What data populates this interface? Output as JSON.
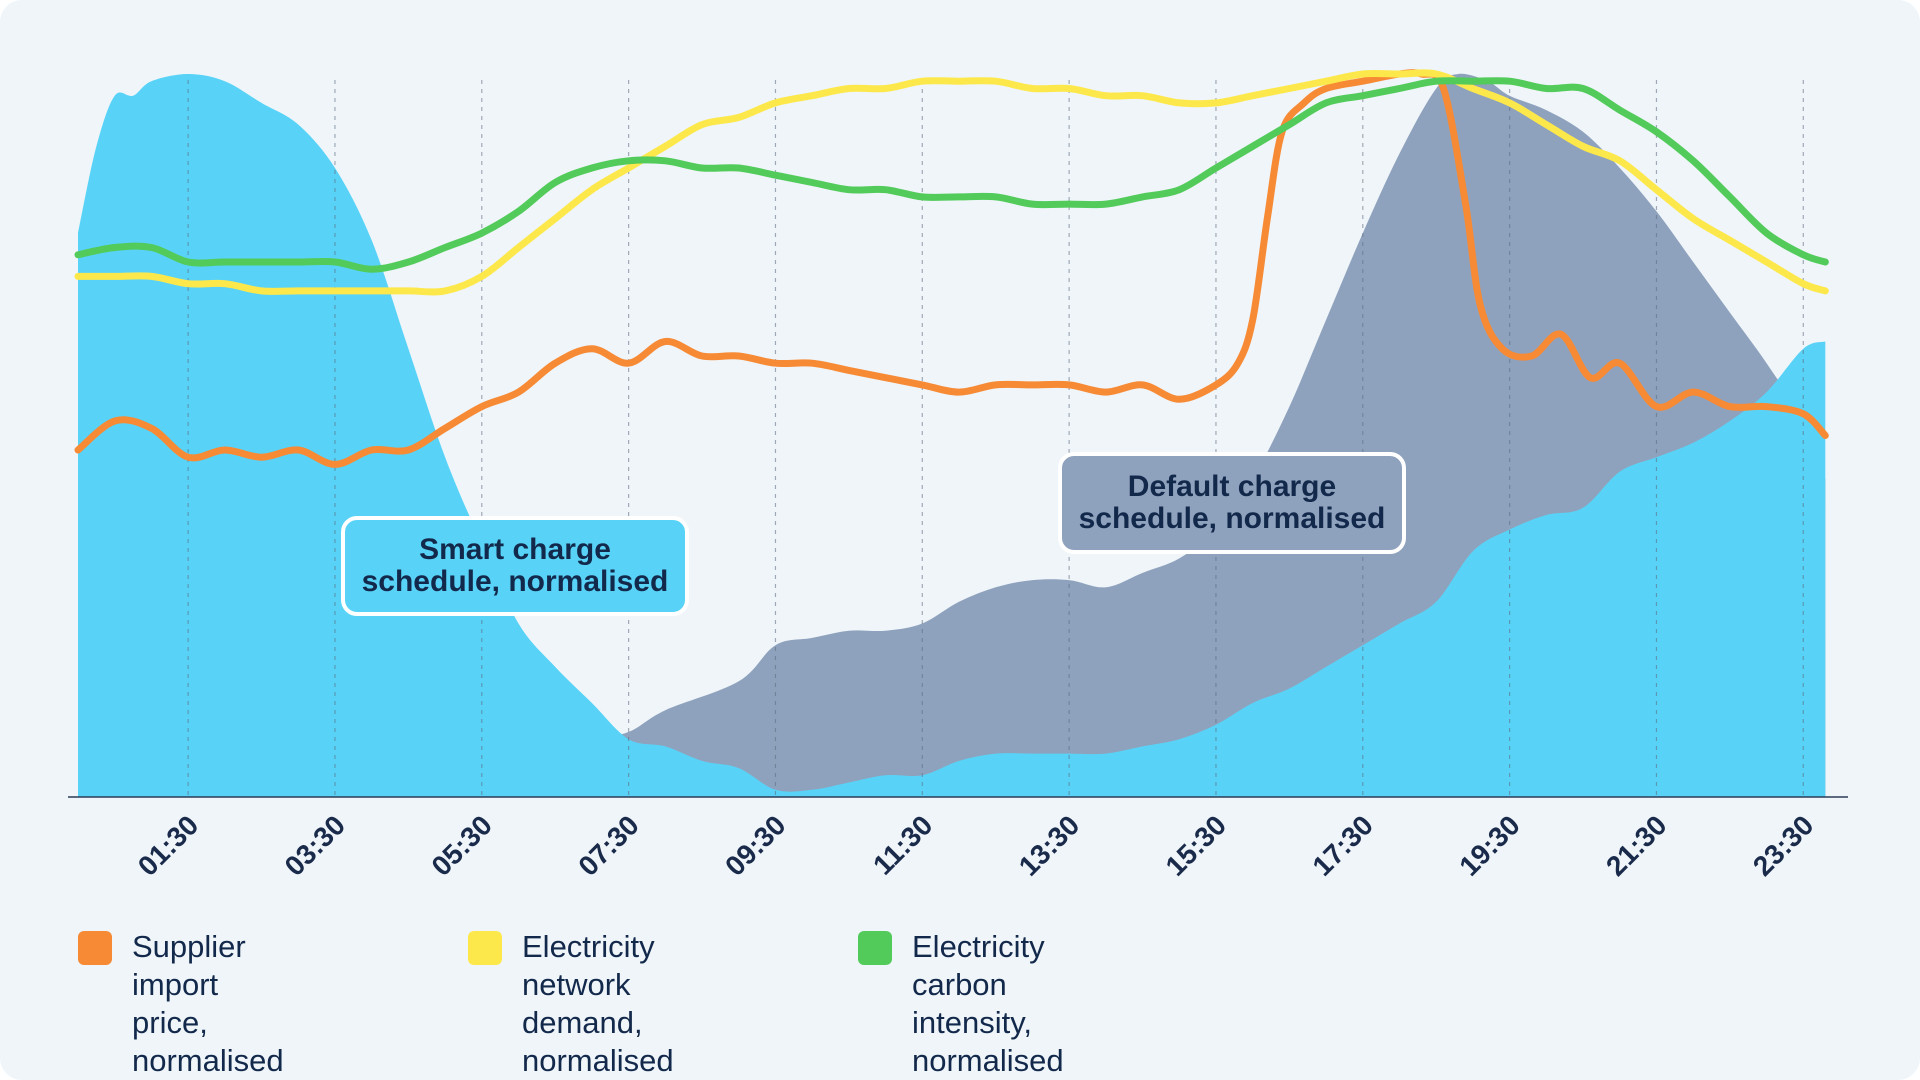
{
  "chart_data": {
    "type": "area",
    "x_unit": "hour",
    "x_range": [
      0,
      24
    ],
    "y_range": [
      0,
      1
    ],
    "tick_labels": [
      "01:30",
      "03:30",
      "05:30",
      "07:30",
      "09:30",
      "11:30",
      "13:30",
      "15:30",
      "17:30",
      "19:30",
      "21:30",
      "23:30"
    ],
    "tick_hours": [
      1.5,
      3.5,
      5.5,
      7.5,
      9.5,
      11.5,
      13.5,
      15.5,
      17.5,
      19.5,
      21.5,
      23.5
    ],
    "grid": "vertical dashed",
    "series": [
      {
        "name": "Default charge schedule, normalised",
        "type": "area",
        "color": "#8fa2bd",
        "points": [
          [
            0,
            0.51
          ],
          [
            0.5,
            0.4
          ],
          [
            1,
            0.33
          ],
          [
            1.5,
            0.27
          ],
          [
            2,
            0.22
          ],
          [
            2.5,
            0.19
          ],
          [
            3,
            0.15
          ],
          [
            3.5,
            0.12
          ],
          [
            4,
            0.11
          ],
          [
            4.5,
            0.08
          ],
          [
            5,
            0.08
          ],
          [
            5.5,
            0.07
          ],
          [
            6,
            0.06
          ],
          [
            7,
            0.08
          ],
          [
            7.5,
            0.09
          ],
          [
            8,
            0.12
          ],
          [
            9,
            0.16
          ],
          [
            9.5,
            0.21
          ],
          [
            10,
            0.22
          ],
          [
            10.5,
            0.23
          ],
          [
            11,
            0.23
          ],
          [
            11.5,
            0.24
          ],
          [
            12,
            0.27
          ],
          [
            12.5,
            0.29
          ],
          [
            13,
            0.3
          ],
          [
            13.5,
            0.3
          ],
          [
            14,
            0.29
          ],
          [
            14.5,
            0.31
          ],
          [
            15,
            0.33
          ],
          [
            15.5,
            0.37
          ],
          [
            16,
            0.44
          ],
          [
            16.5,
            0.54
          ],
          [
            17,
            0.66
          ],
          [
            17.5,
            0.78
          ],
          [
            18,
            0.89
          ],
          [
            18.5,
            0.98
          ],
          [
            18.8,
            1.0
          ],
          [
            19.2,
            0.99
          ],
          [
            19.5,
            0.97
          ],
          [
            20,
            0.95
          ],
          [
            20.5,
            0.92
          ],
          [
            21,
            0.87
          ],
          [
            21.5,
            0.81
          ],
          [
            22,
            0.74
          ],
          [
            22.5,
            0.67
          ],
          [
            23,
            0.6
          ],
          [
            23.5,
            0.52
          ],
          [
            23.8,
            0.44
          ]
        ]
      },
      {
        "name": "Smart charge schedule, normalised",
        "type": "area",
        "color": "#58d3f7",
        "points": [
          [
            0,
            0.78
          ],
          [
            0.25,
            0.9
          ],
          [
            0.5,
            0.97
          ],
          [
            0.75,
            0.97
          ],
          [
            1,
            0.99
          ],
          [
            1.5,
            1.0
          ],
          [
            2,
            0.99
          ],
          [
            2.5,
            0.96
          ],
          [
            3,
            0.93
          ],
          [
            3.5,
            0.87
          ],
          [
            4,
            0.77
          ],
          [
            4.5,
            0.62
          ],
          [
            5,
            0.47
          ],
          [
            5.5,
            0.35
          ],
          [
            6,
            0.24
          ],
          [
            6.5,
            0.18
          ],
          [
            7,
            0.13
          ],
          [
            7.5,
            0.08
          ],
          [
            8,
            0.07
          ],
          [
            8.5,
            0.05
          ],
          [
            9,
            0.04
          ],
          [
            9.5,
            0.01
          ],
          [
            10,
            0.01
          ],
          [
            10.5,
            0.02
          ],
          [
            11,
            0.03
          ],
          [
            11.5,
            0.03
          ],
          [
            12,
            0.05
          ],
          [
            12.5,
            0.06
          ],
          [
            13,
            0.06
          ],
          [
            13.5,
            0.06
          ],
          [
            14,
            0.06
          ],
          [
            14.5,
            0.07
          ],
          [
            15,
            0.08
          ],
          [
            15.5,
            0.1
          ],
          [
            16,
            0.13
          ],
          [
            16.5,
            0.15
          ],
          [
            17,
            0.18
          ],
          [
            17.5,
            0.21
          ],
          [
            18,
            0.24
          ],
          [
            18.5,
            0.27
          ],
          [
            19,
            0.34
          ],
          [
            19.5,
            0.37
          ],
          [
            20,
            0.39
          ],
          [
            20.5,
            0.4
          ],
          [
            21,
            0.45
          ],
          [
            21.5,
            0.47
          ],
          [
            22,
            0.49
          ],
          [
            22.5,
            0.52
          ],
          [
            23,
            0.56
          ],
          [
            23.5,
            0.62
          ],
          [
            23.8,
            0.63
          ]
        ]
      },
      {
        "name": "Supplier import price, normalised",
        "type": "line",
        "color": "#f78a35",
        "points": [
          [
            0,
            0.48
          ],
          [
            0.5,
            0.52
          ],
          [
            1,
            0.51
          ],
          [
            1.5,
            0.47
          ],
          [
            2,
            0.48
          ],
          [
            2.5,
            0.47
          ],
          [
            3,
            0.48
          ],
          [
            3.5,
            0.46
          ],
          [
            4,
            0.48
          ],
          [
            4.5,
            0.48
          ],
          [
            5,
            0.51
          ],
          [
            5.5,
            0.54
          ],
          [
            6,
            0.56
          ],
          [
            6.5,
            0.6
          ],
          [
            7,
            0.62
          ],
          [
            7.5,
            0.6
          ],
          [
            8,
            0.63
          ],
          [
            8.5,
            0.61
          ],
          [
            9,
            0.61
          ],
          [
            9.5,
            0.6
          ],
          [
            10,
            0.6
          ],
          [
            10.5,
            0.59
          ],
          [
            11,
            0.58
          ],
          [
            11.5,
            0.57
          ],
          [
            12,
            0.56
          ],
          [
            12.5,
            0.57
          ],
          [
            13,
            0.57
          ],
          [
            13.5,
            0.57
          ],
          [
            14,
            0.56
          ],
          [
            14.5,
            0.57
          ],
          [
            15,
            0.55
          ],
          [
            15.5,
            0.57
          ],
          [
            15.8,
            0.6
          ],
          [
            16,
            0.66
          ],
          [
            16.2,
            0.8
          ],
          [
            16.4,
            0.92
          ],
          [
            16.7,
            0.96
          ],
          [
            17,
            0.98
          ],
          [
            17.5,
            0.99
          ],
          [
            18,
            1.0
          ],
          [
            18.3,
            1.0
          ],
          [
            18.6,
            0.98
          ],
          [
            18.9,
            0.82
          ],
          [
            19.1,
            0.68
          ],
          [
            19.4,
            0.62
          ],
          [
            19.8,
            0.61
          ],
          [
            20.2,
            0.64
          ],
          [
            20.6,
            0.58
          ],
          [
            21,
            0.6
          ],
          [
            21.5,
            0.54
          ],
          [
            22,
            0.56
          ],
          [
            22.5,
            0.54
          ],
          [
            23,
            0.54
          ],
          [
            23.5,
            0.53
          ],
          [
            23.8,
            0.5
          ]
        ]
      },
      {
        "name": "Electricity network demand, normalised",
        "type": "line",
        "color": "#fde84c",
        "points": [
          [
            0,
            0.72
          ],
          [
            0.5,
            0.72
          ],
          [
            1,
            0.72
          ],
          [
            1.5,
            0.71
          ],
          [
            2,
            0.71
          ],
          [
            2.5,
            0.7
          ],
          [
            3,
            0.7
          ],
          [
            3.5,
            0.7
          ],
          [
            4,
            0.7
          ],
          [
            4.5,
            0.7
          ],
          [
            5,
            0.7
          ],
          [
            5.5,
            0.72
          ],
          [
            6,
            0.76
          ],
          [
            6.5,
            0.8
          ],
          [
            7,
            0.84
          ],
          [
            7.5,
            0.87
          ],
          [
            8,
            0.9
          ],
          [
            8.5,
            0.93
          ],
          [
            9,
            0.94
          ],
          [
            9.5,
            0.96
          ],
          [
            10,
            0.97
          ],
          [
            10.5,
            0.98
          ],
          [
            11,
            0.98
          ],
          [
            11.5,
            0.99
          ],
          [
            12,
            0.99
          ],
          [
            12.5,
            0.99
          ],
          [
            13,
            0.98
          ],
          [
            13.5,
            0.98
          ],
          [
            14,
            0.97
          ],
          [
            14.5,
            0.97
          ],
          [
            15,
            0.96
          ],
          [
            15.5,
            0.96
          ],
          [
            16,
            0.97
          ],
          [
            16.5,
            0.98
          ],
          [
            17,
            0.99
          ],
          [
            17.5,
            1.0
          ],
          [
            18,
            1.0
          ],
          [
            18.5,
            1.0
          ],
          [
            19,
            0.98
          ],
          [
            19.5,
            0.96
          ],
          [
            20,
            0.93
          ],
          [
            20.5,
            0.9
          ],
          [
            21,
            0.88
          ],
          [
            21.5,
            0.84
          ],
          [
            22,
            0.8
          ],
          [
            22.5,
            0.77
          ],
          [
            23,
            0.74
          ],
          [
            23.5,
            0.71
          ],
          [
            23.8,
            0.7
          ]
        ]
      },
      {
        "name": "Electricity carbon intensity, normalised",
        "type": "line",
        "color": "#52cb5b",
        "points": [
          [
            0,
            0.75
          ],
          [
            0.5,
            0.76
          ],
          [
            1,
            0.76
          ],
          [
            1.5,
            0.74
          ],
          [
            2,
            0.74
          ],
          [
            2.5,
            0.74
          ],
          [
            3,
            0.74
          ],
          [
            3.5,
            0.74
          ],
          [
            4,
            0.73
          ],
          [
            4.5,
            0.74
          ],
          [
            5,
            0.76
          ],
          [
            5.5,
            0.78
          ],
          [
            6,
            0.81
          ],
          [
            6.5,
            0.85
          ],
          [
            7,
            0.87
          ],
          [
            7.5,
            0.88
          ],
          [
            8,
            0.88
          ],
          [
            8.5,
            0.87
          ],
          [
            9,
            0.87
          ],
          [
            9.5,
            0.86
          ],
          [
            10,
            0.85
          ],
          [
            10.5,
            0.84
          ],
          [
            11,
            0.84
          ],
          [
            11.5,
            0.83
          ],
          [
            12,
            0.83
          ],
          [
            12.5,
            0.83
          ],
          [
            13,
            0.82
          ],
          [
            13.5,
            0.82
          ],
          [
            14,
            0.82
          ],
          [
            14.5,
            0.83
          ],
          [
            15,
            0.84
          ],
          [
            15.5,
            0.87
          ],
          [
            16,
            0.9
          ],
          [
            16.5,
            0.93
          ],
          [
            17,
            0.96
          ],
          [
            17.5,
            0.97
          ],
          [
            18,
            0.98
          ],
          [
            18.5,
            0.99
          ],
          [
            19,
            0.99
          ],
          [
            19.5,
            0.99
          ],
          [
            20,
            0.98
          ],
          [
            20.5,
            0.98
          ],
          [
            21,
            0.95
          ],
          [
            21.5,
            0.92
          ],
          [
            22,
            0.88
          ],
          [
            22.5,
            0.83
          ],
          [
            23,
            0.78
          ],
          [
            23.5,
            0.75
          ],
          [
            23.8,
            0.74
          ]
        ]
      }
    ]
  },
  "callouts": {
    "smart": "Smart charge\nschedule, normalised",
    "default": "Default charge\nschedule, normalised"
  },
  "legend": [
    {
      "label": "Supplier import price,\nnormalised",
      "color": "#f78a35"
    },
    {
      "label": "Electricity network\ndemand, normalised",
      "color": "#fde84c"
    },
    {
      "label": "Electricity carbon\nintensity, normalised",
      "color": "#52cb5b"
    }
  ]
}
